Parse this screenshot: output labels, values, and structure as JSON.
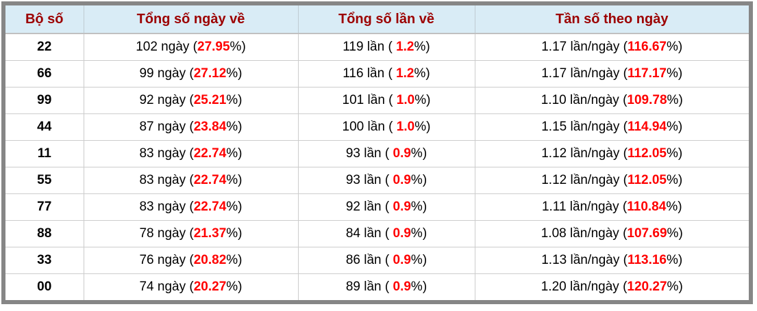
{
  "chart_data": {
    "type": "table",
    "title": "",
    "columns": [
      "Bộ số",
      "Tổng số ngày về",
      "Tổng số lần về",
      "Tần số theo ngày"
    ],
    "rows": [
      {
        "pair": "22",
        "days": "102 ngày",
        "days_pct": "27.95",
        "times": "119 lần",
        "times_pct": "1.2",
        "freq": "1.17 lần/ngày",
        "freq_pct": "116.67"
      },
      {
        "pair": "66",
        "days": "99 ngày",
        "days_pct": "27.12",
        "times": "116 lần",
        "times_pct": "1.2",
        "freq": "1.17 lần/ngày",
        "freq_pct": "117.17"
      },
      {
        "pair": "99",
        "days": "92 ngày",
        "days_pct": "25.21",
        "times": "101 lần",
        "times_pct": "1.0",
        "freq": "1.10 lần/ngày",
        "freq_pct": "109.78"
      },
      {
        "pair": "44",
        "days": "87 ngày",
        "days_pct": "23.84",
        "times": "100 lần",
        "times_pct": "1.0",
        "freq": "1.15 lần/ngày",
        "freq_pct": "114.94"
      },
      {
        "pair": "11",
        "days": "83 ngày",
        "days_pct": "22.74",
        "times": "93 lần",
        "times_pct": "0.9",
        "freq": "1.12 lần/ngày",
        "freq_pct": "112.05"
      },
      {
        "pair": "55",
        "days": "83 ngày",
        "days_pct": "22.74",
        "times": "93 lần",
        "times_pct": "0.9",
        "freq": "1.12 lần/ngày",
        "freq_pct": "112.05"
      },
      {
        "pair": "77",
        "days": "83 ngày",
        "days_pct": "22.74",
        "times": "92 lần",
        "times_pct": "0.9",
        "freq": "1.11 lần/ngày",
        "freq_pct": "110.84"
      },
      {
        "pair": "88",
        "days": "78 ngày",
        "days_pct": "21.37",
        "times": "84 lần",
        "times_pct": "0.9",
        "freq": "1.08 lần/ngày",
        "freq_pct": "107.69"
      },
      {
        "pair": "33",
        "days": "76 ngày",
        "days_pct": "20.82",
        "times": "86 lần",
        "times_pct": "0.9",
        "freq": "1.13 lần/ngày",
        "freq_pct": "113.16"
      },
      {
        "pair": "00",
        "days": "74 ngày",
        "days_pct": "20.27",
        "times": "89 lần",
        "times_pct": "0.9",
        "freq": "1.20 lần/ngày",
        "freq_pct": "120.27"
      }
    ]
  },
  "format": {
    "open": " (",
    "open_spaced": " ( ",
    "close": "%)"
  },
  "colors": {
    "header_bg": "#d9ecf6",
    "header_text": "#9c0000",
    "value_red": "#ff0000",
    "frame": "#868686",
    "grid": "#cccccc"
  }
}
